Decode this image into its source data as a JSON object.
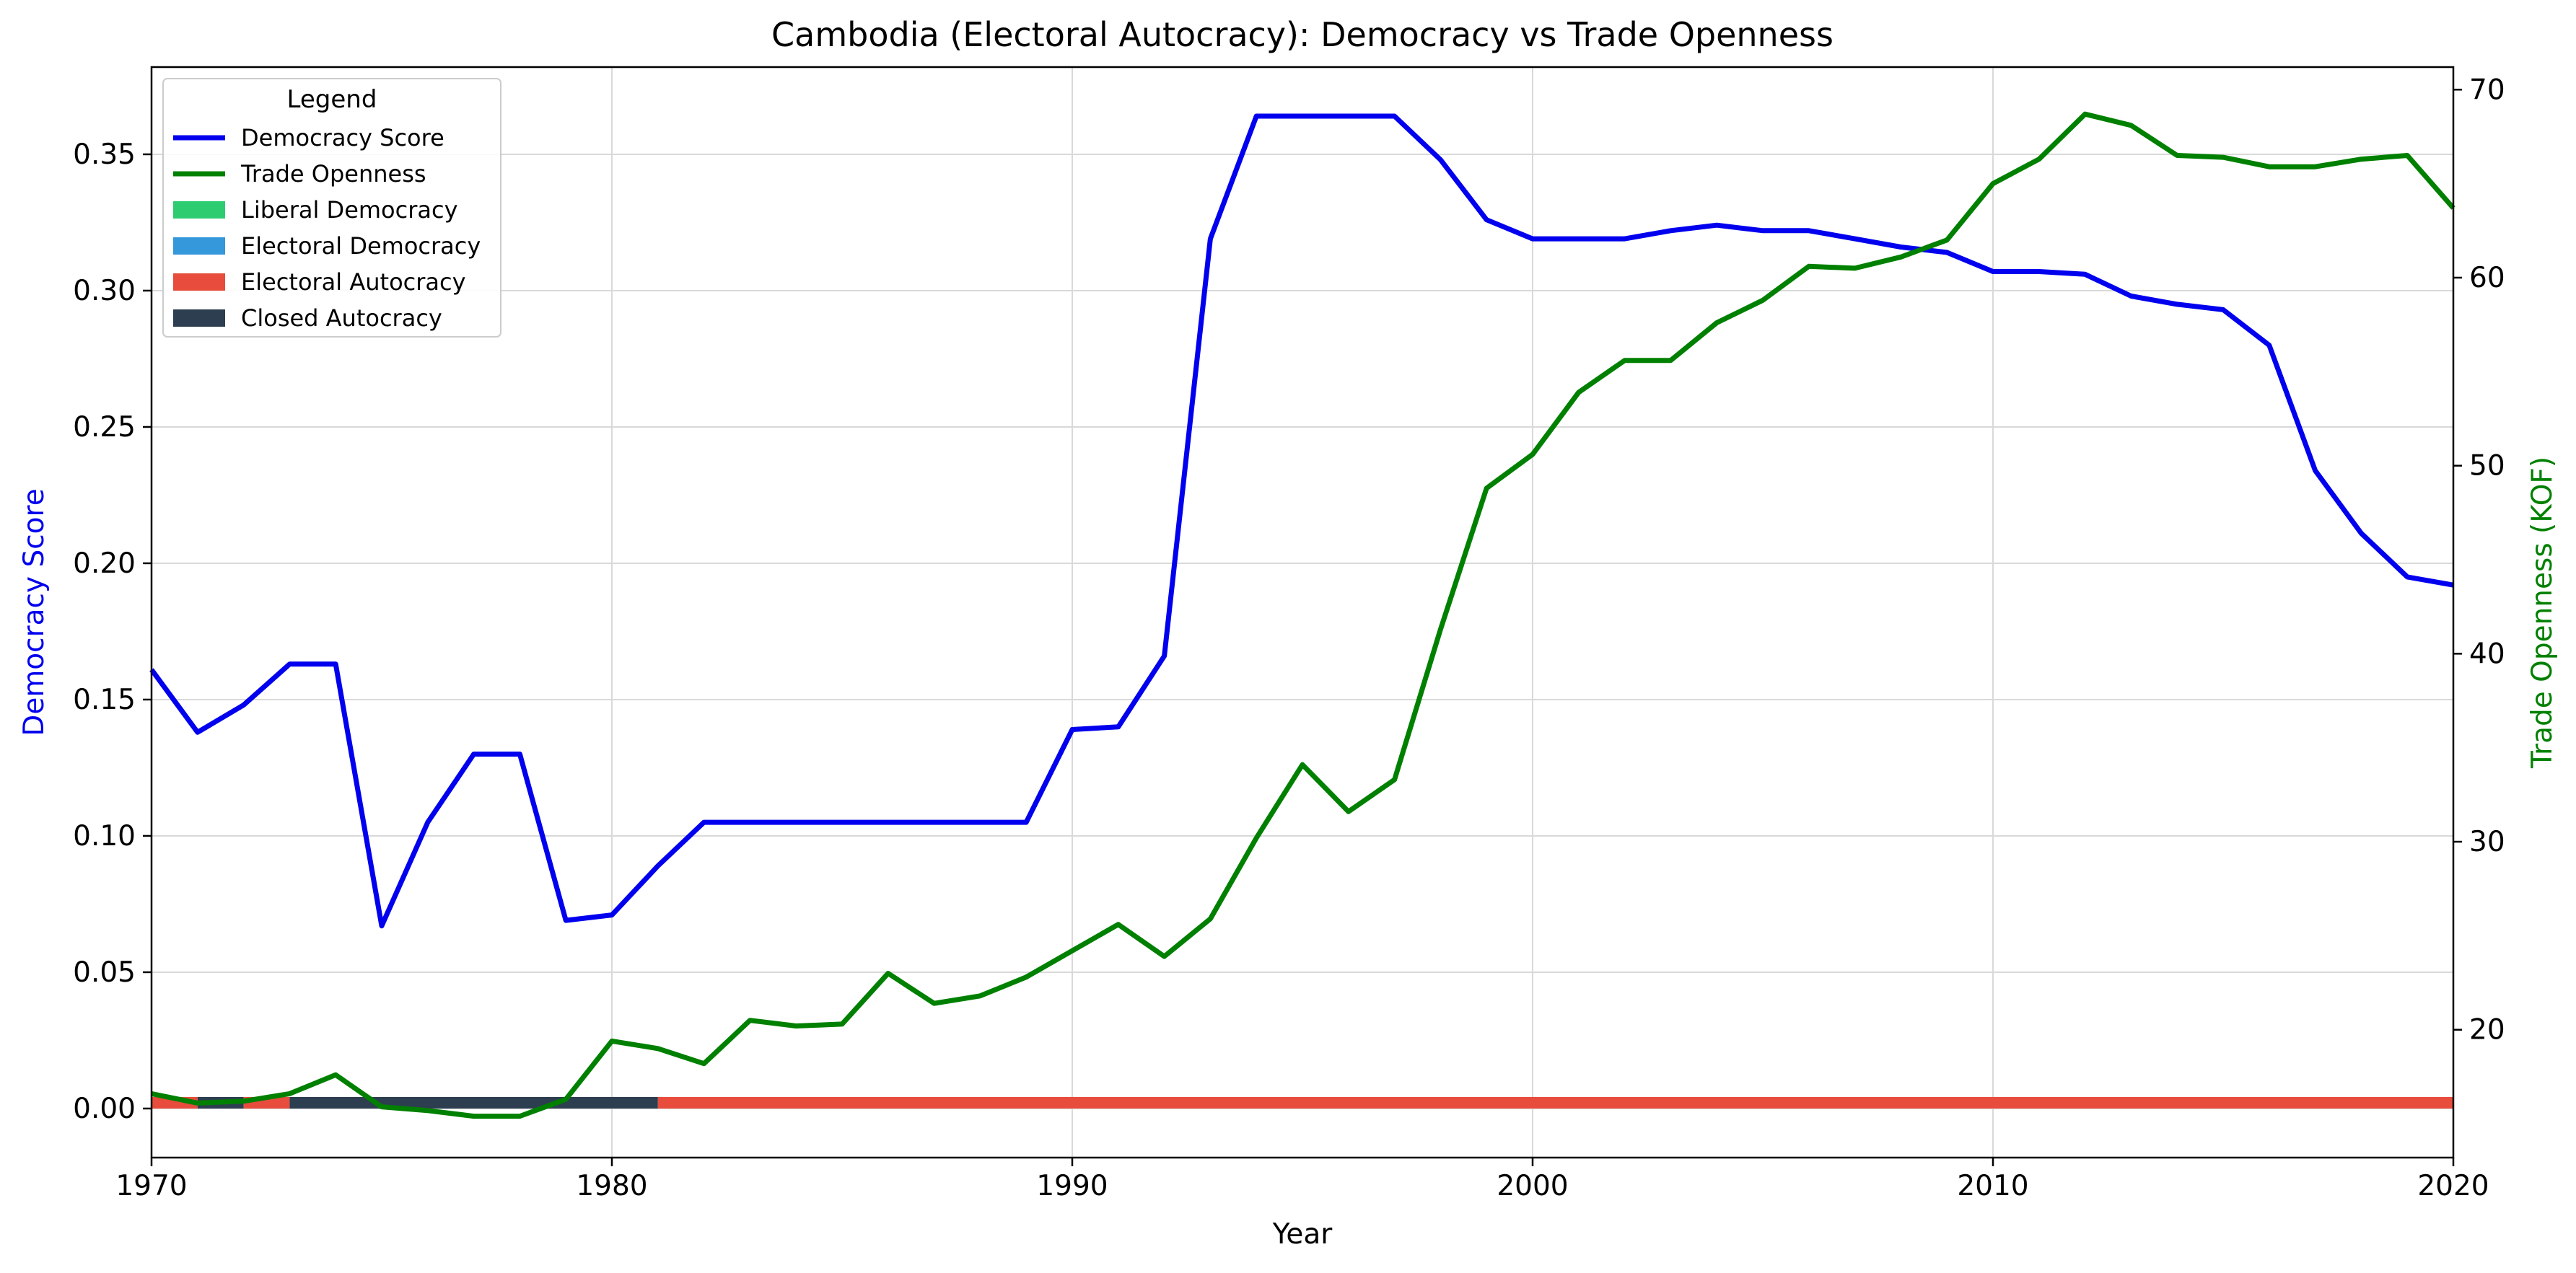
{
  "chart_data": {
    "type": "line",
    "title": "Cambodia (Electoral Autocracy): Democracy vs Trade Openness",
    "xlabel": "Year",
    "ylabel_left": "Democracy Score",
    "ylabel_right": "Trade Openness (KOF)",
    "xlim": [
      1970,
      2020
    ],
    "ylim_left": [
      -0.018,
      0.382
    ],
    "ylim_right": [
      13.2,
      71.2
    ],
    "x_ticks": [
      1970,
      1980,
      1990,
      2000,
      2010,
      2020
    ],
    "y_left_ticks": [
      "0.00",
      "0.05",
      "0.10",
      "0.15",
      "0.20",
      "0.25",
      "0.30",
      "0.35"
    ],
    "y_right_ticks": [
      "20",
      "30",
      "40",
      "50",
      "60",
      "70"
    ],
    "grid": true,
    "legend": {
      "title": "Legend",
      "placement": "top-left",
      "entries": [
        {
          "label": "Democracy Score",
          "kind": "line",
          "color": "#0000ee"
        },
        {
          "label": "Trade Openness",
          "kind": "line",
          "color": "#008000"
        },
        {
          "label": "Liberal Democracy",
          "kind": "patch",
          "color": "#2ecc71"
        },
        {
          "label": "Electoral Democracy",
          "kind": "patch",
          "color": "#3498db"
        },
        {
          "label": "Electoral Autocracy",
          "kind": "patch",
          "color": "#e74c3c"
        },
        {
          "label": "Closed Autocracy",
          "kind": "patch",
          "color": "#2c3e50"
        }
      ]
    },
    "x": [
      1970,
      1971,
      1972,
      1973,
      1974,
      1975,
      1976,
      1977,
      1978,
      1979,
      1980,
      1981,
      1982,
      1983,
      1984,
      1985,
      1986,
      1987,
      1988,
      1989,
      1990,
      1991,
      1992,
      1993,
      1994,
      1995,
      1996,
      1997,
      1998,
      1999,
      2000,
      2001,
      2002,
      2003,
      2004,
      2005,
      2006,
      2007,
      2008,
      2009,
      2010,
      2011,
      2012,
      2013,
      2014,
      2015,
      2016,
      2017,
      2018,
      2019,
      2020
    ],
    "series": [
      {
        "name": "Democracy Score",
        "axis": "left",
        "color": "#0000ee",
        "values": [
          0.161,
          0.138,
          0.148,
          0.163,
          0.163,
          0.067,
          0.105,
          0.13,
          0.13,
          0.069,
          0.071,
          0.089,
          0.105,
          0.105,
          0.105,
          0.105,
          0.105,
          0.105,
          0.105,
          0.105,
          0.139,
          0.14,
          0.166,
          0.319,
          0.364,
          0.364,
          0.364,
          0.364,
          0.348,
          0.326,
          0.319,
          0.319,
          0.319,
          0.322,
          0.324,
          0.322,
          0.322,
          0.319,
          0.316,
          0.314,
          0.307,
          0.307,
          0.306,
          0.298,
          0.295,
          0.293,
          0.28,
          0.234,
          0.211,
          0.195,
          0.192
        ]
      },
      {
        "name": "Trade Openness",
        "axis": "right",
        "color": "#008000",
        "values": [
          16.6,
          16.1,
          16.2,
          16.6,
          17.6,
          15.9,
          15.7,
          15.4,
          15.4,
          16.3,
          19.4,
          19.0,
          18.2,
          20.5,
          20.2,
          20.3,
          23.0,
          21.4,
          21.8,
          22.8,
          24.2,
          25.6,
          23.9,
          25.9,
          30.2,
          34.1,
          31.6,
          33.3,
          41.3,
          48.8,
          50.6,
          53.9,
          55.6,
          55.6,
          57.6,
          58.8,
          60.6,
          60.5,
          61.1,
          62.0,
          65.0,
          66.3,
          68.7,
          68.1,
          66.5,
          66.4,
          65.9,
          65.9,
          66.3,
          66.5,
          63.7
        ]
      }
    ],
    "regime_strip": [
      {
        "start": 1970,
        "end": 1971,
        "regime": "Electoral Autocracy",
        "color": "#e74c3c"
      },
      {
        "start": 1971,
        "end": 1972,
        "regime": "Closed Autocracy",
        "color": "#2c3e50"
      },
      {
        "start": 1972,
        "end": 1973,
        "regime": "Electoral Autocracy",
        "color": "#e74c3c"
      },
      {
        "start": 1973,
        "end": 1981,
        "regime": "Closed Autocracy",
        "color": "#2c3e50"
      },
      {
        "start": 1981,
        "end": 2020,
        "regime": "Electoral Autocracy",
        "color": "#e74c3c"
      }
    ]
  }
}
